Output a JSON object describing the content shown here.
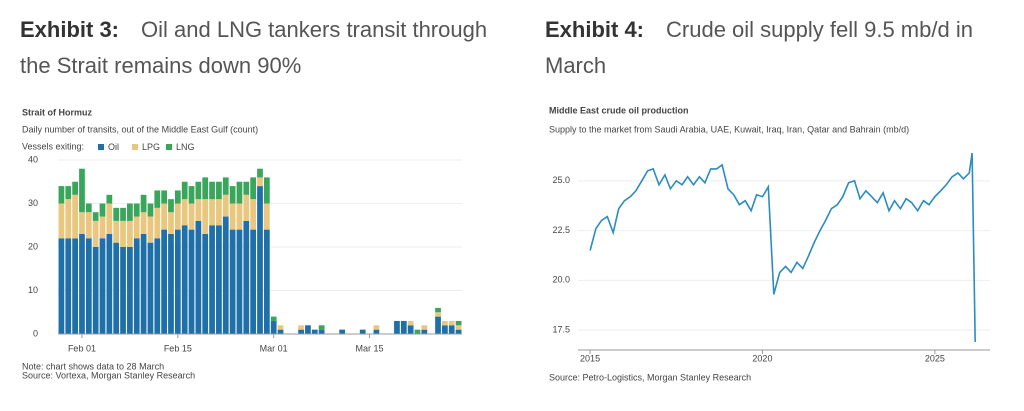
{
  "chart_data": [
    {
      "type": "bar",
      "exhibit": "Exhibit 3:",
      "heading": "Oil and LNG tankers transit through the Strait remains down 90%",
      "title": "Strait of Hormuz",
      "subtitle": "Daily number of transits, out of the Middle East Gulf (count)",
      "legend_title": "Vessels exiting:",
      "note": "Note: chart shows data to 28 March",
      "source": "Source: Vortexa, Morgan Stanley Research",
      "categories": [
        null,
        null,
        null,
        "Feb 01",
        null,
        null,
        null,
        null,
        null,
        null,
        null,
        null,
        null,
        null,
        null,
        null,
        null,
        "Feb 15",
        null,
        null,
        null,
        null,
        null,
        null,
        null,
        null,
        null,
        null,
        null,
        null,
        null,
        "Mar 01",
        null,
        null,
        null,
        null,
        null,
        null,
        null,
        null,
        null,
        null,
        null,
        null,
        null,
        "Mar 15",
        null,
        null,
        null,
        null,
        null,
        null,
        null,
        null,
        null,
        null,
        null,
        null,
        null
      ],
      "series": [
        {
          "name": "Oil",
          "color": "#1f6fa8",
          "values": [
            22,
            22,
            22,
            23,
            22,
            20,
            22,
            23,
            21,
            20,
            20,
            22,
            23,
            21,
            22,
            24,
            23,
            24,
            25,
            24,
            26,
            23,
            25,
            25,
            27,
            24,
            24,
            26,
            24,
            34,
            24,
            3,
            1,
            0,
            0,
            1,
            2,
            1,
            1,
            0,
            0,
            1,
            0,
            0,
            1,
            0,
            1,
            0,
            0,
            3,
            3,
            2,
            0,
            1,
            0,
            4,
            2,
            2,
            1
          ]
        },
        {
          "name": "LPG",
          "color": "#e9c77f",
          "values": [
            8,
            9,
            10,
            5,
            6,
            6,
            5,
            7,
            5,
            6,
            6,
            5,
            5,
            6,
            7,
            6,
            5,
            6,
            6,
            6,
            5,
            8,
            6,
            6,
            5,
            6,
            6,
            6,
            7,
            2,
            6,
            0,
            1,
            0,
            0,
            1,
            0,
            0,
            0,
            0,
            0,
            0,
            0,
            0,
            0,
            0,
            1,
            0,
            0,
            0,
            0,
            1,
            0,
            1,
            0,
            1,
            1,
            1,
            1
          ]
        },
        {
          "name": "LNG",
          "color": "#3aa65c",
          "values": [
            4,
            3,
            3,
            10,
            2,
            2,
            3,
            2,
            3,
            3,
            4,
            3,
            4,
            3,
            4,
            3,
            3,
            3,
            4,
            4,
            4,
            5,
            4,
            4,
            4,
            4,
            5,
            3,
            5,
            2,
            6,
            1,
            0,
            0,
            0,
            0,
            0,
            0,
            1,
            0,
            0,
            0,
            0,
            0,
            0,
            0,
            0,
            0,
            0,
            0,
            0,
            0,
            1,
            0,
            0,
            1,
            0,
            0,
            1
          ]
        }
      ],
      "ylim": [
        0,
        40
      ],
      "yticks": [
        0,
        10,
        20,
        30,
        40
      ],
      "grid": true
    },
    {
      "type": "line",
      "exhibit": "Exhibit 4:",
      "heading": "Crude oil supply fell 9.5 mb/d in March",
      "title": "Middle East crude oil production",
      "subtitle": "Supply to the market from Saudi Arabia, UAE, Kuwait, Iraq, Iran, Qatar and Bahrain (mb/d)",
      "source": "Source: Petro-Logistics, Morgan Stanley Research",
      "color": "#2b8cbe",
      "x": [
        2015.0,
        2015.17,
        2015.33,
        2015.5,
        2015.67,
        2015.83,
        2016.0,
        2016.17,
        2016.33,
        2016.5,
        2016.67,
        2016.83,
        2017.0,
        2017.17,
        2017.33,
        2017.5,
        2017.67,
        2017.83,
        2018.0,
        2018.17,
        2018.33,
        2018.5,
        2018.67,
        2018.83,
        2019.0,
        2019.17,
        2019.33,
        2019.5,
        2019.67,
        2019.83,
        2020.0,
        2020.17,
        2020.33,
        2020.5,
        2020.67,
        2020.83,
        2021.0,
        2021.17,
        2021.33,
        2021.5,
        2021.67,
        2021.83,
        2022.0,
        2022.17,
        2022.33,
        2022.5,
        2022.67,
        2022.83,
        2023.0,
        2023.17,
        2023.33,
        2023.5,
        2023.67,
        2023.83,
        2024.0,
        2024.17,
        2024.33,
        2024.5,
        2024.67,
        2024.83,
        2025.0,
        2025.17,
        2025.33,
        2025.5,
        2025.67,
        2025.83,
        2026.0,
        2026.08,
        2026.17
      ],
      "values": [
        21.5,
        22.6,
        23.0,
        23.2,
        22.4,
        23.6,
        24.0,
        24.2,
        24.5,
        25.0,
        25.5,
        25.6,
        24.8,
        25.3,
        24.6,
        25.0,
        24.8,
        25.2,
        24.8,
        25.2,
        24.9,
        25.6,
        25.6,
        25.8,
        24.6,
        24.3,
        23.8,
        24.0,
        23.5,
        24.3,
        24.2,
        24.7,
        19.3,
        20.4,
        20.7,
        20.4,
        20.9,
        20.6,
        21.2,
        21.9,
        22.5,
        23.0,
        23.6,
        23.8,
        24.2,
        24.9,
        25.0,
        24.1,
        24.5,
        24.2,
        23.9,
        24.4,
        23.5,
        24.0,
        23.6,
        24.1,
        23.9,
        23.5,
        24.0,
        23.8,
        24.2,
        24.5,
        24.8,
        25.2,
        25.4,
        25.1,
        25.4,
        26.4,
        16.9
      ],
      "xlim": [
        2014.65,
        2026.6
      ],
      "xticks": [
        2015,
        2020,
        2025
      ],
      "ylim": [
        16.75,
        26.8
      ],
      "yticks": [
        17.5,
        {
          "value": 20,
          "label": "20.0"
        },
        22.5,
        {
          "value": 25,
          "label": "25.0"
        }
      ],
      "grid": true
    }
  ]
}
